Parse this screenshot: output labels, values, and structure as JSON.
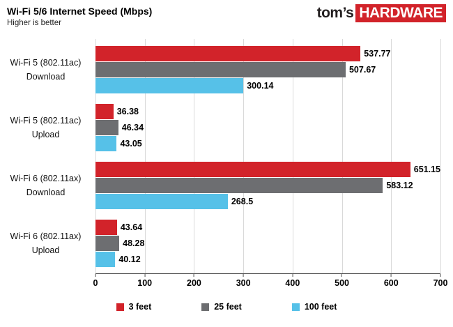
{
  "header": {
    "title": "Wi-Fi 5/6 Internet Speed (Mbps)",
    "subtitle": "Higher is better",
    "logo_prefix": "tom’s",
    "logo_suffix": "HARDWARE",
    "logo_accent_color": "#d2232a"
  },
  "chart_data": {
    "type": "bar",
    "orientation": "horizontal",
    "title": "Wi-Fi 5/6 Internet Speed (Mbps)",
    "subtitle": "Higher is better",
    "categories": [
      "Wi-Fi 5 (802.11ac) Download",
      "Wi-Fi 5 (802.11ac) Upload",
      "Wi-Fi 6 (802.11ax) Download",
      "Wi-Fi 6 (802.11ax) Upload"
    ],
    "category_lines": [
      [
        "Wi-Fi 5 (802.11ac)",
        "Download"
      ],
      [
        "Wi-Fi 5 (802.11ac)",
        "Upload"
      ],
      [
        "Wi-Fi 6 (802.11ax)",
        "Download"
      ],
      [
        "Wi-Fi 6 (802.11ax)",
        "Upload"
      ]
    ],
    "series": [
      {
        "name": "3 feet",
        "color": "#d2232a",
        "values": [
          537.77,
          36.38,
          651.15,
          43.64
        ],
        "labels": [
          "537.77",
          "36.38",
          "651.15",
          "43.64"
        ]
      },
      {
        "name": "25 feet",
        "color": "#6d6e71",
        "values": [
          507.67,
          46.34,
          583.12,
          48.28
        ],
        "labels": [
          "507.67",
          "46.34",
          "583.12",
          "48.28"
        ]
      },
      {
        "name": "100 feet",
        "color": "#56c1e8",
        "values": [
          300.14,
          43.05,
          268.5,
          40.12
        ],
        "labels": [
          "300.14",
          "43.05",
          "268.5",
          "40.12"
        ]
      }
    ],
    "xlim": [
      0,
      700
    ],
    "xticks": [
      0,
      100,
      200,
      300,
      400,
      500,
      600,
      700
    ],
    "grid": true,
    "grid_color": "#d9d9d9",
    "axis_color": "#4d4d4d",
    "legend_position": "bottom"
  }
}
